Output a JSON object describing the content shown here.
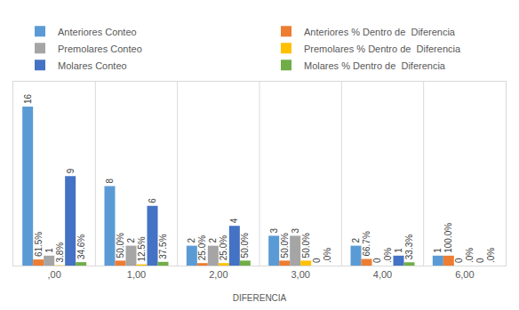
{
  "chart_data": {
    "type": "bar",
    "x_label": "DIFERENCIA",
    "categories": [
      ",00",
      "1,00",
      "2,00",
      "3,00",
      "4,00",
      "6,00"
    ],
    "series": [
      {
        "name": "Anteriores Conteo",
        "color": "#5B9BD5",
        "values": [
          16,
          8,
          2,
          3,
          2,
          1
        ]
      },
      {
        "name": "Anteriores % Dentro de  Diferencia",
        "color": "#ED7D31",
        "values": [
          0.615,
          0.5,
          0.25,
          0.5,
          0.667,
          1.0
        ],
        "value_labels": [
          "61.5%",
          "50.0%",
          "25.0%",
          "50.0%",
          "66.7%",
          "100.0%"
        ]
      },
      {
        "name": "Premolares Conteo",
        "color": "#A5A5A5",
        "values": [
          1,
          2,
          2,
          3,
          0,
          0
        ]
      },
      {
        "name": "Premolares % Dentro de  Diferencia",
        "color": "#FFC000",
        "values": [
          0.038,
          0.125,
          0.25,
          0.5,
          0.0,
          0.0
        ],
        "value_labels": [
          "3.8%",
          "12.5%",
          "25.0%",
          "50.0%",
          ".0%",
          ".0%"
        ]
      },
      {
        "name": "Molares Conteo",
        "color": "#4472C4",
        "values": [
          9,
          6,
          4,
          0,
          1,
          0
        ]
      },
      {
        "name": "Molares % Dentro de  Diferencia",
        "color": "#70AD47",
        "values": [
          0.346,
          0.375,
          0.5,
          0.0,
          0.333,
          0.0
        ],
        "value_labels": [
          "34.6%",
          "37.5%",
          "50.0%",
          ".0%",
          "33.3%",
          ".0%"
        ]
      }
    ],
    "ylim": [
      0,
      18.5
    ],
    "tick_labels": "x",
    "grid": false,
    "legend": "top",
    "data_labels": true
  }
}
